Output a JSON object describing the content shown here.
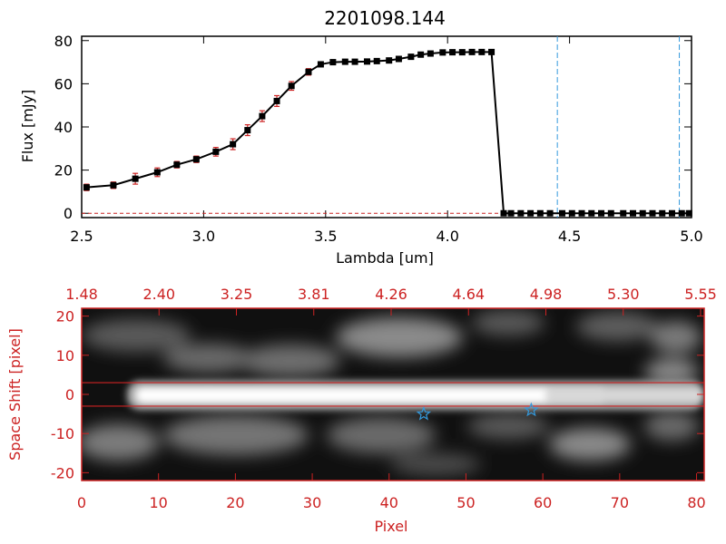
{
  "colors": {
    "red": "#cc2222",
    "blue": "#3399dd",
    "black": "#000000"
  },
  "chart_data": [
    {
      "type": "line",
      "title": "2201098.144",
      "xlabel": "Lambda [um]",
      "ylabel": "Flux [mJy]",
      "xlim": [
        2.5,
        5.0
      ],
      "ylim": [
        -2,
        82
      ],
      "x_ticks": [
        "2.5",
        "3.0",
        "3.5",
        "4.0",
        "4.5",
        "5.0"
      ],
      "y_ticks": [
        "0",
        "20",
        "40",
        "60",
        "80"
      ],
      "series": [
        {
          "x": [
            2.52,
            2.63,
            2.72,
            2.81,
            2.89,
            2.97,
            3.05,
            3.12,
            3.18,
            3.24,
            3.3,
            3.36,
            3.43,
            3.48,
            3.53,
            3.58,
            3.62,
            3.67,
            3.71,
            3.76,
            3.8,
            3.85,
            3.89,
            3.93,
            3.98,
            4.02,
            4.06,
            4.1,
            4.14,
            4.18,
            4.23,
            4.26,
            4.3,
            4.34,
            4.38,
            4.42,
            4.47,
            4.51,
            4.55,
            4.59,
            4.63,
            4.67,
            4.72,
            4.76,
            4.8,
            4.84,
            4.88,
            4.92,
            4.96,
            4.99
          ],
          "y": [
            12,
            13,
            16,
            19,
            22.5,
            25,
            28.5,
            32,
            38.5,
            45,
            52,
            59,
            65.5,
            69,
            70,
            70.2,
            70.2,
            70.3,
            70.5,
            70.8,
            71.5,
            72.5,
            73.5,
            74,
            74.5,
            74.6,
            74.6,
            74.7,
            74.7,
            74.7,
            0,
            0,
            0,
            0,
            0,
            0,
            0,
            0,
            0,
            0,
            0,
            0,
            0,
            0,
            0,
            0,
            0,
            0,
            0,
            0
          ],
          "errors": [
            1.5,
            1.5,
            2.5,
            2,
            1.5,
            1.5,
            2,
            2.5,
            2.5,
            2.5,
            2.5,
            2,
            1.5,
            1,
            1,
            1,
            1,
            1,
            1,
            1,
            1,
            1,
            1,
            1,
            1,
            1,
            1,
            1,
            1,
            1,
            0,
            0,
            0,
            0,
            0,
            0,
            0,
            0,
            0,
            0,
            0,
            0,
            0,
            0,
            0,
            0,
            0,
            0,
            0,
            0
          ]
        }
      ],
      "vlines_x": [
        4.45,
        4.95
      ]
    },
    {
      "type": "heatmap",
      "xlabel": "Pixel",
      "ylabel": "Space Shift [pixel]",
      "xlim": [
        0,
        81
      ],
      "ylim": [
        -22,
        22
      ],
      "x_ticks": [
        "0",
        "10",
        "20",
        "30",
        "40",
        "50",
        "60",
        "70",
        "80"
      ],
      "y_ticks": [
        "-20",
        "-10",
        "0",
        "10",
        "20"
      ],
      "top_axis_ticks": [
        "1.48",
        "2.40",
        "3.25",
        "3.81",
        "4.26",
        "4.64",
        "4.98",
        "5.30",
        "5.55"
      ],
      "extraction_lines_y": [
        3,
        -3
      ],
      "stars": [
        {
          "x": 44.5,
          "y": -5
        },
        {
          "x": 58.5,
          "y": -4
        }
      ]
    }
  ]
}
